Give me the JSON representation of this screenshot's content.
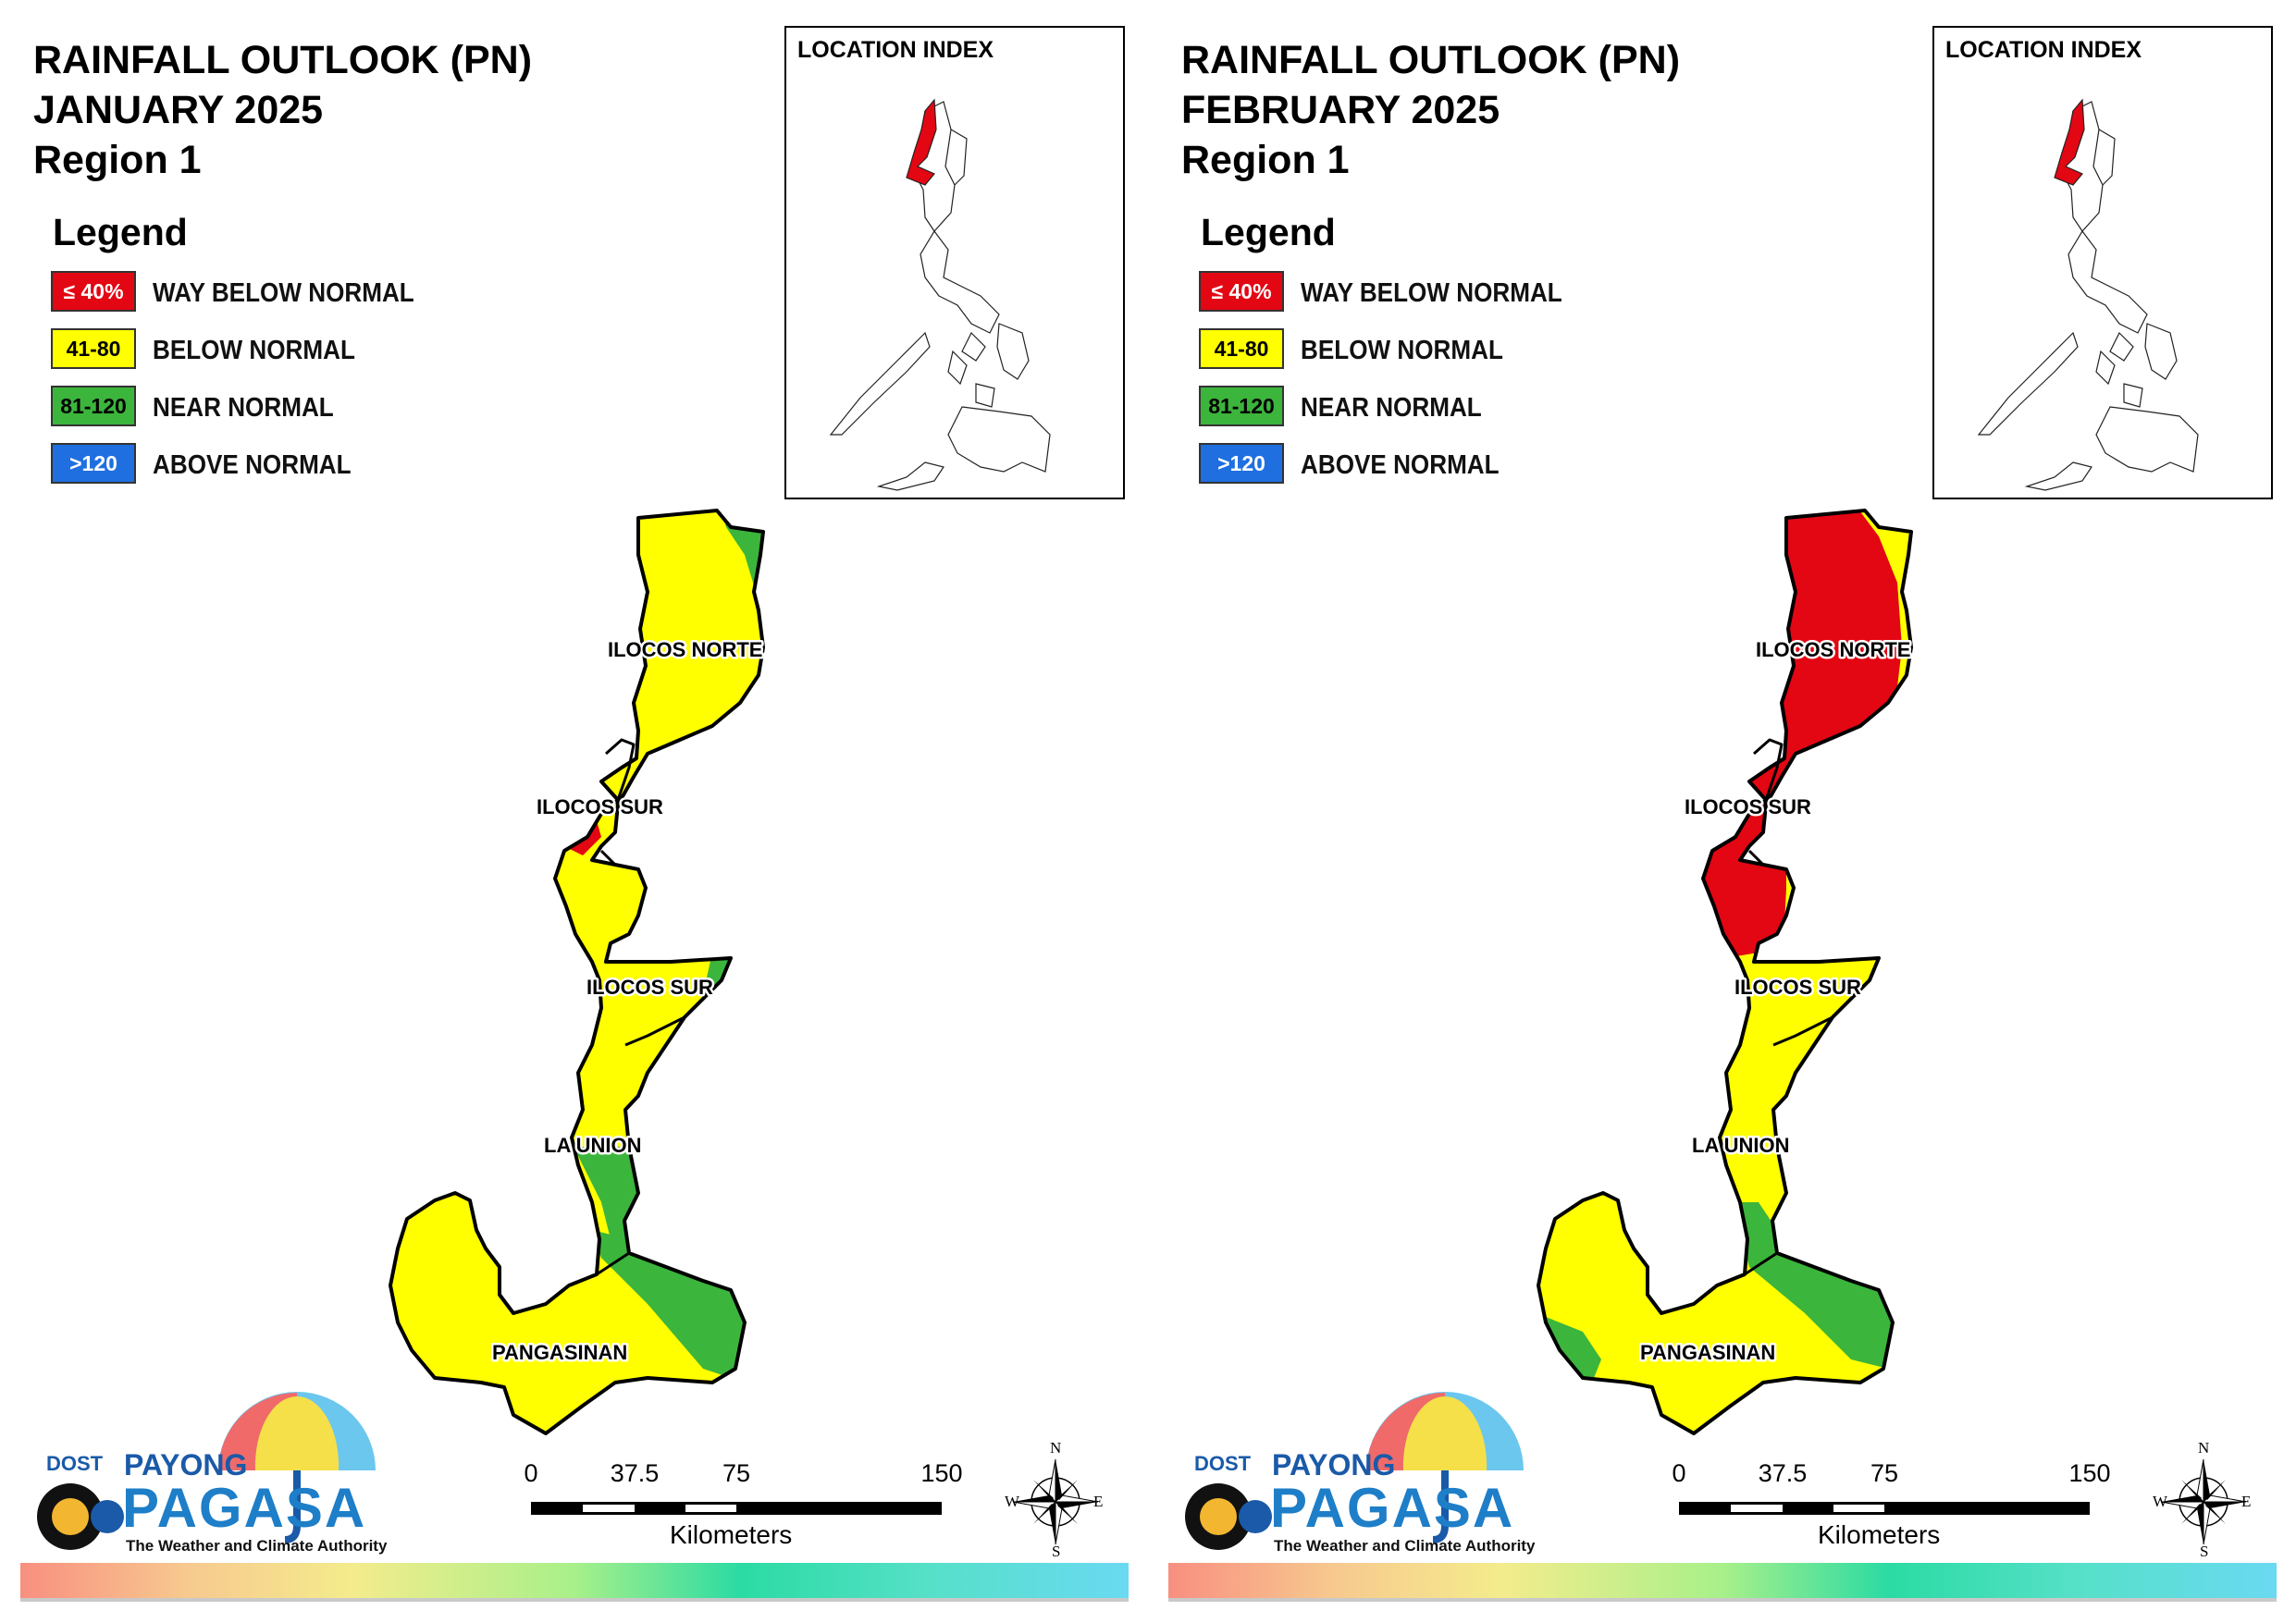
{
  "legend": {
    "title": "Legend",
    "items": [
      {
        "swatch": "≤ 40%",
        "label": "WAY BELOW NORMAL",
        "color": "#e30613",
        "text_color": "#ffffff"
      },
      {
        "swatch": "41-80",
        "label": "BELOW NORMAL",
        "color": "#ffff00",
        "text_color": "#000000"
      },
      {
        "swatch": "81-120",
        "label": "NEAR NORMAL",
        "color": "#3cb53c",
        "text_color": "#000000"
      },
      {
        "swatch": ">120",
        "label": "ABOVE NORMAL",
        "color": "#1f6fe0",
        "text_color": "#ffffff"
      }
    ]
  },
  "location_index": {
    "title": "LOCATION INDEX"
  },
  "provinces": [
    "ILOCOS NORTE",
    "ILOCOS SUR",
    "ILOCOS SUR",
    "LA UNION",
    "PANGASINAN"
  ],
  "maps": [
    {
      "title_line1": "RAINFALL OUTLOOK (PN)",
      "title_line2": "JANUARY 2025",
      "title_line3": "Region 1",
      "category_by_zone": {
        "ilocos_norte_main": "below_normal",
        "ilocos_norte_ne_edge": "near_normal",
        "ilocos_sur_coast_spot": "way_below_normal",
        "ilocos_sur_south": "below_normal",
        "ilocos_sur_east_strip": "near_normal",
        "la_union_east": "near_normal",
        "la_union_west": "below_normal",
        "pangasinan_main": "below_normal",
        "pangasinan_east": "near_normal"
      }
    },
    {
      "title_line1": "RAINFALL OUTLOOK (PN)",
      "title_line2": "FEBRUARY 2025",
      "title_line3": "Region 1",
      "category_by_zone": {
        "ilocos_norte_main": "way_below_normal",
        "ilocos_norte_ne_edge": "below_normal",
        "ilocos_sur_north": "way_below_normal",
        "ilocos_sur_south": "below_normal",
        "la_union": "below_normal",
        "la_union_sliver": "near_normal",
        "pangasinan_main": "below_normal",
        "pangasinan_east": "near_normal",
        "pangasinan_west_tip": "near_normal"
      }
    }
  ],
  "scale": {
    "ticks": [
      "0",
      "37.5",
      "75",
      "150"
    ],
    "unit": "Kilometers"
  },
  "compass": {
    "n": "N",
    "s": "S",
    "e": "E",
    "w": "W"
  },
  "logo": {
    "dost": "DOST",
    "payong": "PAYONG",
    "pagasa": "PAGASA",
    "tagline": "The Weather and Climate Authority"
  }
}
